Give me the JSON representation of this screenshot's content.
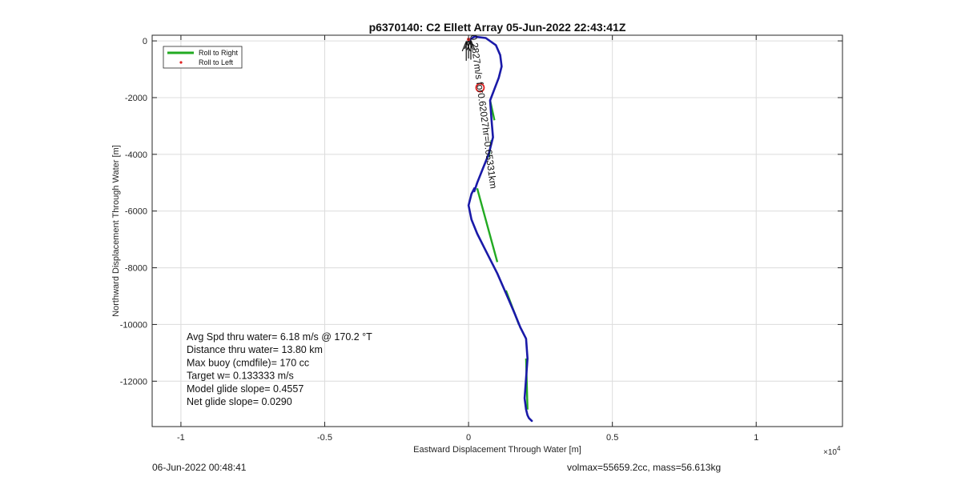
{
  "chart_data": {
    "type": "line",
    "title": "p6370140: C2 Ellett Array 05-Jun-2022 22:43:41Z",
    "xlabel": "Eastward Displacement Through Water [m]",
    "ylabel": "Northward Displacement Through Water [m]",
    "x_exponent_label": "×10",
    "x_exponent_value": "4",
    "xlim": [
      -1.1,
      1.3
    ],
    "ylim": [
      -13600,
      200
    ],
    "x_ticks": [
      -1,
      -0.5,
      0,
      0.5,
      1
    ],
    "x_tick_labels": [
      "-1",
      "-0.5",
      "0",
      "0.5",
      "1"
    ],
    "y_ticks": [
      0,
      -2000,
      -4000,
      -6000,
      -8000,
      -10000,
      -12000
    ],
    "y_tick_labels": [
      "0",
      "-2000",
      "-4000",
      "-6000",
      "-8000",
      "-10000",
      "-12000"
    ],
    "grid": true,
    "legend_position": "top-left",
    "legend": [
      {
        "label": "Roll to Right",
        "color": "#22aa22",
        "style": "line"
      },
      {
        "label": "Roll to Left",
        "color": "#e02020",
        "style": "marker"
      }
    ],
    "series": [
      {
        "name": "track",
        "color": "#1a1aa8",
        "x": [
          0.0,
          0.005,
          0.02,
          0.06,
          0.095,
          0.11,
          0.115,
          0.105,
          0.09,
          0.075,
          0.08,
          0.085,
          0.07,
          0.05,
          0.03,
          0.02,
          0.02,
          0.01,
          0.0,
          0.01,
          0.03,
          0.06,
          0.1,
          0.13,
          0.16,
          0.18,
          0.2,
          0.205,
          0.2,
          0.195,
          0.2,
          0.205,
          0.21,
          0.22
        ],
        "y": [
          0,
          50,
          150,
          100,
          -150,
          -500,
          -900,
          -1300,
          -1700,
          -2100,
          -2800,
          -3400,
          -4000,
          -4500,
          -5000,
          -5300,
          -5200,
          -5400,
          -5800,
          -6300,
          -6800,
          -7400,
          -8200,
          -8900,
          -9600,
          -10100,
          -10500,
          -11200,
          -11900,
          -12600,
          -13000,
          -13200,
          -13300,
          -13400
        ]
      }
    ],
    "green_segments": [
      {
        "x": [
          0.075,
          0.09
        ],
        "y": [
          -2100,
          -2800
        ]
      },
      {
        "x": [
          0.08,
          0.07
        ],
        "y": [
          -3500,
          -4100
        ]
      },
      {
        "x": [
          0.03,
          0.1
        ],
        "y": [
          -5200,
          -7800
        ]
      },
      {
        "x": [
          0.13,
          0.175
        ],
        "y": [
          -8800,
          -10000
        ]
      },
      {
        "x": [
          0.2,
          0.205
        ],
        "y": [
          -11200,
          -13000
        ]
      }
    ],
    "current_arrows": [
      {
        "x": 0.0,
        "y": 0
      },
      {
        "x": -0.008,
        "y": -80
      },
      {
        "x": 0.008,
        "y": -40
      }
    ],
    "marker": {
      "x": 0.04,
      "y": -1650,
      "color": "#e02020",
      "shape": "circle"
    },
    "annotation": {
      "text": "0.2827m/s for0.62027hr=0.65331km",
      "x": 0.0,
      "y": 200,
      "angle_deg": 82.5
    },
    "stats": [
      "Avg Spd thru water=  6.18 m/s @ 170.2 °T",
      "Distance thru water= 13.80 km",
      "Max buoy (cmdfile)= 170 cc",
      "Target w= 0.133333 m/s",
      "Model glide slope= 0.4557",
      "Net glide slope= 0.0290"
    ]
  },
  "footer": {
    "date": "06-Jun-2022 00:48:41",
    "mass": "volmax=55659.2cc, mass=56.613kg"
  }
}
